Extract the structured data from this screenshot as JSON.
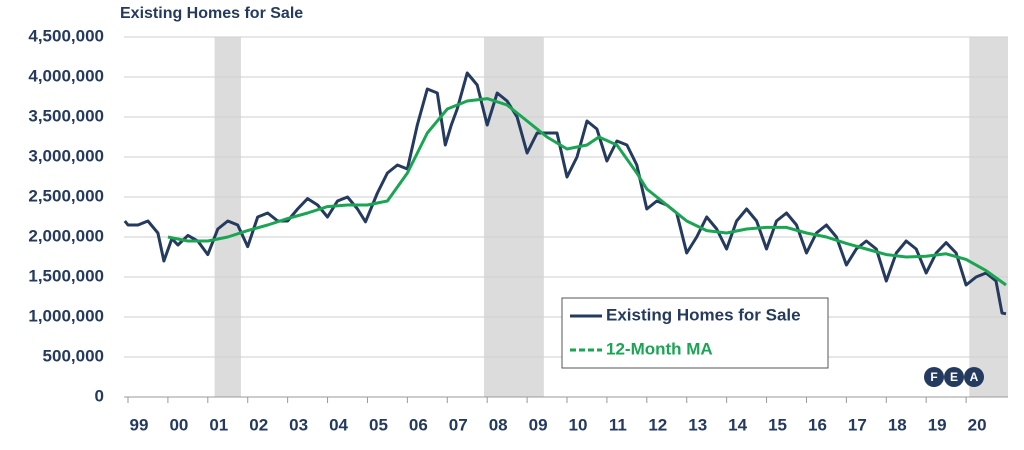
{
  "chart_data": {
    "type": "line",
    "title": "Existing Homes for Sale",
    "xlim": [
      1998.9,
      2021.05
    ],
    "ylim": [
      0,
      4500000
    ],
    "yticks": [
      0,
      {
        "value": 500000,
        "label": "500,000"
      },
      {
        "value": 1000000,
        "label": "1,000,000"
      },
      {
        "value": 1500000,
        "label": "1,500,000"
      },
      {
        "value": 2000000,
        "label": "2,000,000"
      },
      {
        "value": 2500000,
        "label": "2,500,000"
      },
      {
        "value": 3000000,
        "label": "3,000,000"
      },
      {
        "value": 3500000,
        "label": "3,500,000"
      },
      {
        "value": 4000000,
        "label": "4,000,000"
      },
      {
        "value": 4500000,
        "label": "4,500,000"
      }
    ],
    "xticks": [
      {
        "value": 1999,
        "label": "99"
      },
      {
        "value": 2000,
        "label": "00"
      },
      {
        "value": 2001,
        "label": "01"
      },
      {
        "value": 2002,
        "label": "02"
      },
      {
        "value": 2003,
        "label": "03"
      },
      {
        "value": 2004,
        "label": "04"
      },
      {
        "value": 2005,
        "label": "05"
      },
      {
        "value": 2006,
        "label": "06"
      },
      {
        "value": 2007,
        "label": "07"
      },
      {
        "value": 2008,
        "label": "08"
      },
      {
        "value": 2009,
        "label": "09"
      },
      {
        "value": 2010,
        "label": "10"
      },
      {
        "value": 2011,
        "label": "11"
      },
      {
        "value": 2012,
        "label": "12"
      },
      {
        "value": 2013,
        "label": "13"
      },
      {
        "value": 2014,
        "label": "14"
      },
      {
        "value": 2015,
        "label": "15"
      },
      {
        "value": 2016,
        "label": "16"
      },
      {
        "value": 2017,
        "label": "17"
      },
      {
        "value": 2018,
        "label": "18"
      },
      {
        "value": 2019,
        "label": "19"
      },
      {
        "value": 2020,
        "label": "20"
      }
    ],
    "grid": true,
    "shaded_periods": [
      [
        2001.17,
        2001.83
      ],
      [
        2007.92,
        2009.42
      ],
      [
        2020.08,
        2021.05
      ]
    ],
    "shade_color": "#dcdcdc",
    "legend": "lower right",
    "series": [
      {
        "name": "Existing Homes for Sale",
        "color": "#243a5e",
        "dash": false,
        "x": [
          1998.92,
          1999.0,
          1999.25,
          1999.5,
          1999.75,
          1999.9,
          2000.1,
          2000.25,
          2000.5,
          2000.75,
          2001.0,
          2001.25,
          2001.5,
          2001.75,
          2002.0,
          2002.25,
          2002.5,
          2002.75,
          2003.0,
          2003.25,
          2003.5,
          2003.75,
          2004.0,
          2004.25,
          2004.5,
          2004.75,
          2004.95,
          2005.25,
          2005.5,
          2005.75,
          2006.0,
          2006.25,
          2006.5,
          2006.75,
          2006.95,
          2007.1,
          2007.25,
          2007.5,
          2007.75,
          2008.0,
          2008.25,
          2008.5,
          2008.75,
          2009.0,
          2009.25,
          2009.5,
          2009.75,
          2010.0,
          2010.25,
          2010.5,
          2010.75,
          2011.0,
          2011.25,
          2011.5,
          2011.75,
          2012.0,
          2012.25,
          2012.5,
          2012.75,
          2013.0,
          2013.25,
          2013.5,
          2013.75,
          2014.0,
          2014.25,
          2014.5,
          2014.75,
          2015.0,
          2015.25,
          2015.5,
          2015.75,
          2016.0,
          2016.25,
          2016.5,
          2016.75,
          2017.0,
          2017.25,
          2017.5,
          2017.75,
          2018.0,
          2018.25,
          2018.5,
          2018.75,
          2019.0,
          2019.25,
          2019.5,
          2019.75,
          2020.0,
          2020.25,
          2020.5,
          2020.75,
          2020.9,
          2021.0
        ],
        "values": [
          2200000,
          2150000,
          2150000,
          2200000,
          2050000,
          1700000,
          1980000,
          1900000,
          2020000,
          1950000,
          1780000,
          2100000,
          2200000,
          2150000,
          1880000,
          2250000,
          2300000,
          2200000,
          2200000,
          2350000,
          2480000,
          2400000,
          2250000,
          2450000,
          2500000,
          2350000,
          2190000,
          2550000,
          2800000,
          2900000,
          2850000,
          3400000,
          3850000,
          3800000,
          3150000,
          3400000,
          3600000,
          4050000,
          3900000,
          3400000,
          3800000,
          3700000,
          3500000,
          3050000,
          3300000,
          3300000,
          3300000,
          2750000,
          3000000,
          3450000,
          3350000,
          2950000,
          3200000,
          3150000,
          2900000,
          2350000,
          2450000,
          2400000,
          2300000,
          1800000,
          2000000,
          2250000,
          2100000,
          1850000,
          2200000,
          2350000,
          2200000,
          1850000,
          2200000,
          2300000,
          2150000,
          1800000,
          2050000,
          2150000,
          2000000,
          1650000,
          1850000,
          1950000,
          1850000,
          1450000,
          1800000,
          1950000,
          1850000,
          1550000,
          1800000,
          1930000,
          1800000,
          1400000,
          1500000,
          1550000,
          1450000,
          1050000,
          1040000
        ]
      },
      {
        "name": "12-Month MA",
        "color": "#1aa552",
        "dash": true,
        "x": [
          2000.0,
          2000.5,
          2001.0,
          2001.5,
          2002.0,
          2002.5,
          2003.0,
          2003.5,
          2004.0,
          2004.5,
          2005.0,
          2005.5,
          2006.0,
          2006.5,
          2007.0,
          2007.5,
          2008.0,
          2008.5,
          2009.0,
          2009.5,
          2010.0,
          2010.5,
          2010.8,
          2011.25,
          2011.75,
          2012.0,
          2012.5,
          2013.0,
          2013.5,
          2014.0,
          2014.5,
          2015.0,
          2015.5,
          2016.0,
          2016.5,
          2017.0,
          2017.5,
          2018.0,
          2018.5,
          2019.0,
          2019.5,
          2020.0,
          2020.5,
          2021.0
        ],
        "values": [
          2000000,
          1950000,
          1950000,
          2000000,
          2080000,
          2150000,
          2230000,
          2300000,
          2380000,
          2400000,
          2400000,
          2450000,
          2800000,
          3300000,
          3600000,
          3700000,
          3730000,
          3650000,
          3450000,
          3250000,
          3100000,
          3150000,
          3250000,
          3150000,
          2800000,
          2600000,
          2400000,
          2200000,
          2080000,
          2050000,
          2100000,
          2120000,
          2120000,
          2050000,
          2000000,
          1920000,
          1850000,
          1780000,
          1750000,
          1760000,
          1790000,
          1720000,
          1580000,
          1400000
        ]
      }
    ],
    "logo": [
      "F",
      "E",
      "A"
    ]
  }
}
